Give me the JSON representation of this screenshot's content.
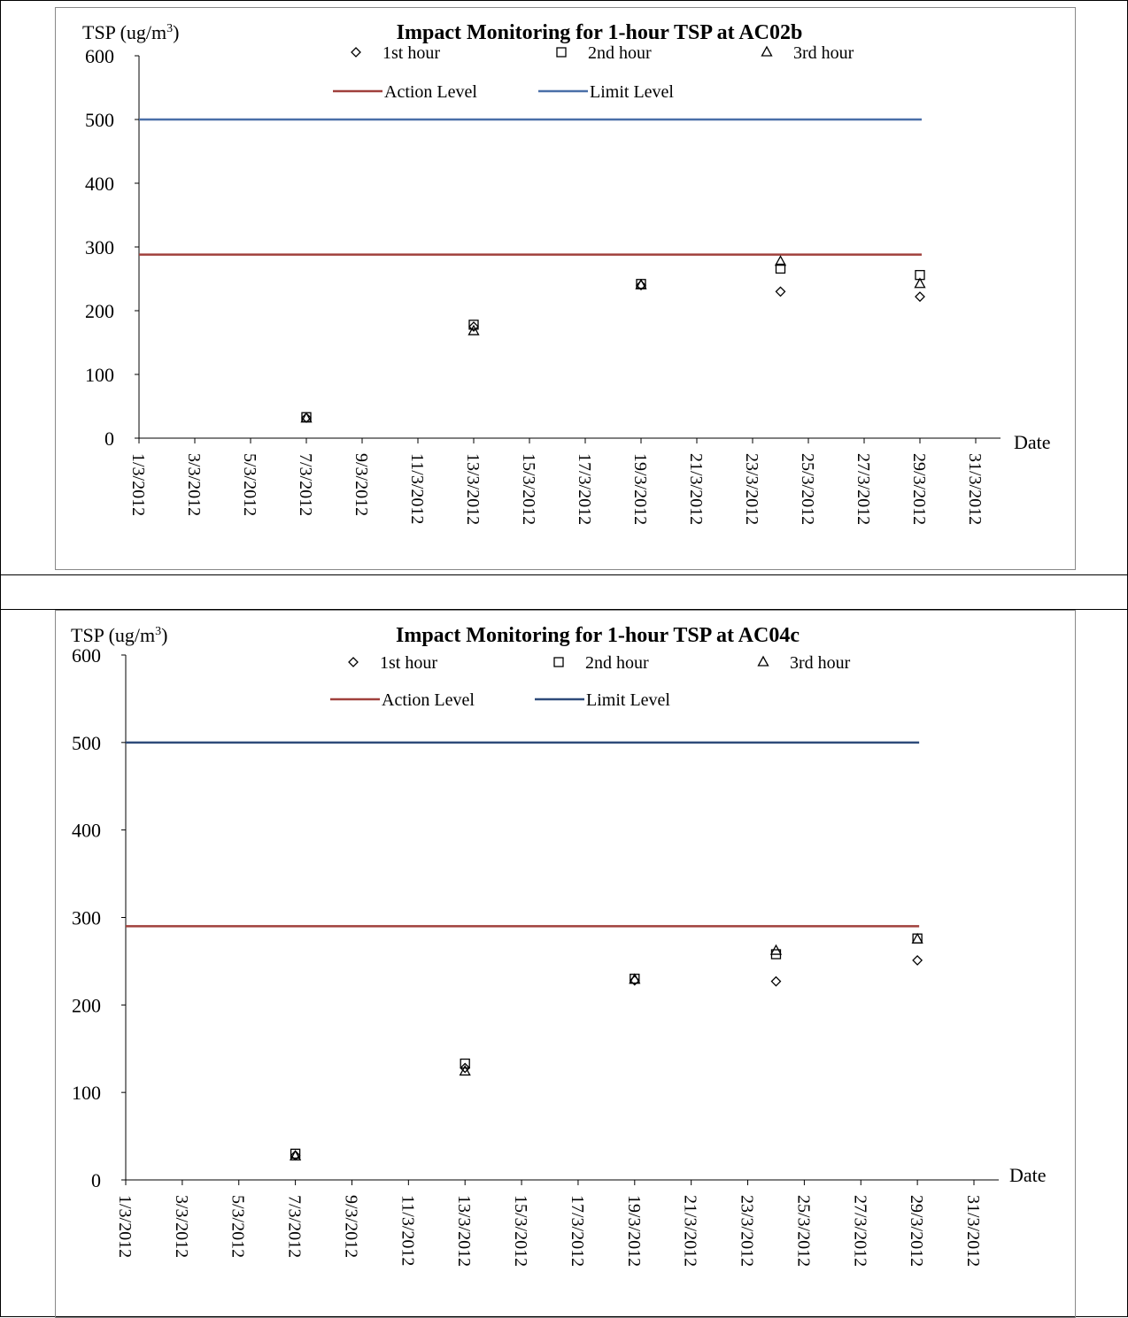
{
  "chart_data": [
    {
      "type": "scatter",
      "title": "Impact Monitoring for 1-hour TSP at AC02b",
      "ylabel": "TSP (ug/m3)",
      "xlabel": "Date",
      "ylim": [
        0,
        600
      ],
      "yticks": [
        0,
        100,
        200,
        300,
        400,
        500,
        600
      ],
      "xlim": [
        "1/3/2012",
        "31/3/2012"
      ],
      "xticks": [
        "1/3/2012",
        "3/3/2012",
        "5/3/2012",
        "7/3/2012",
        "9/3/2012",
        "11/3/2012",
        "13/3/2012",
        "15/3/2012",
        "17/3/2012",
        "19/3/2012",
        "21/3/2012",
        "23/3/2012",
        "25/3/2012",
        "27/3/2012",
        "29/3/2012",
        "31/3/2012"
      ],
      "grid": false,
      "legend_position": "top",
      "series": [
        {
          "name": "1st hour",
          "marker": "diamond",
          "x": [
            "7/3/2012",
            "13/3/2012",
            "19/3/2012",
            "24/3/2012",
            "29/3/2012"
          ],
          "values": [
            32,
            175,
            240,
            230,
            222
          ]
        },
        {
          "name": "2nd hour",
          "marker": "square",
          "x": [
            "7/3/2012",
            "13/3/2012",
            "19/3/2012",
            "24/3/2012",
            "29/3/2012"
          ],
          "values": [
            33,
            178,
            242,
            266,
            256
          ]
        },
        {
          "name": "3rd hour",
          "marker": "triangle",
          "x": [
            "7/3/2012",
            "13/3/2012",
            "19/3/2012",
            "24/3/2012",
            "29/3/2012"
          ],
          "values": [
            31,
            168,
            240,
            277,
            242
          ]
        }
      ],
      "lines": [
        {
          "name": "Action Level",
          "value": 288,
          "color": "#a0403c"
        },
        {
          "name": "Limit Level",
          "value": 500,
          "color": "#4a6fa8"
        }
      ]
    },
    {
      "type": "scatter",
      "title": "Impact Monitoring for 1-hour TSP at AC04c",
      "ylabel": "TSP (ug/m3)",
      "xlabel": "Date",
      "ylim": [
        0,
        600
      ],
      "yticks": [
        0,
        100,
        200,
        300,
        400,
        500,
        600
      ],
      "xlim": [
        "1/3/2012",
        "31/3/2012"
      ],
      "xticks": [
        "1/3/2012",
        "3/3/2012",
        "5/3/2012",
        "7/3/2012",
        "9/3/2012",
        "11/3/2012",
        "13/3/2012",
        "15/3/2012",
        "17/3/2012",
        "19/3/2012",
        "21/3/2012",
        "23/3/2012",
        "25/3/2012",
        "27/3/2012",
        "29/3/2012",
        "31/3/2012"
      ],
      "grid": false,
      "legend_position": "top",
      "series": [
        {
          "name": "1st hour",
          "marker": "diamond",
          "x": [
            "7/3/2012",
            "13/3/2012",
            "19/3/2012",
            "24/3/2012",
            "29/3/2012"
          ],
          "values": [
            28,
            128,
            228,
            227,
            251
          ]
        },
        {
          "name": "2nd hour",
          "marker": "square",
          "x": [
            "7/3/2012",
            "13/3/2012",
            "19/3/2012",
            "24/3/2012",
            "29/3/2012"
          ],
          "values": [
            30,
            133,
            230,
            258,
            276
          ]
        },
        {
          "name": "3rd hour",
          "marker": "triangle",
          "x": [
            "7/3/2012",
            "13/3/2012",
            "19/3/2012",
            "24/3/2012",
            "29/3/2012"
          ],
          "values": [
            27,
            124,
            229,
            262,
            275
          ]
        }
      ],
      "lines": [
        {
          "name": "Action Level",
          "value": 290,
          "color": "#a0403c"
        },
        {
          "name": "Limit Level",
          "value": 500,
          "color": "#2e4b7a"
        }
      ]
    }
  ]
}
